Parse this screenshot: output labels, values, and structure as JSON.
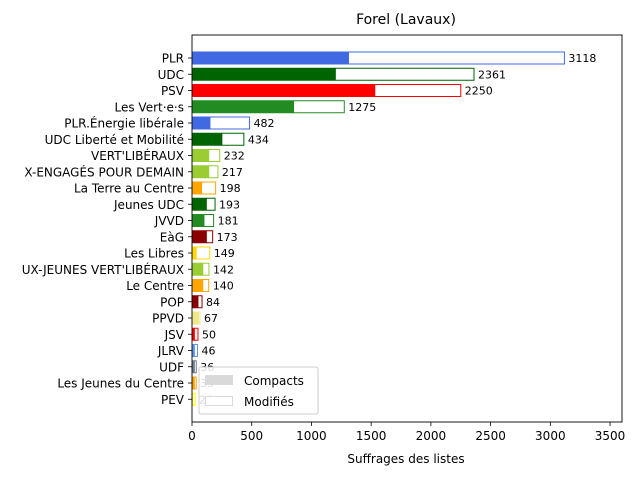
{
  "chart_data": {
    "type": "bar",
    "orientation": "horizontal",
    "stacked": true,
    "title": "Forel (Lavaux)",
    "xlabel": "Suffrages des listes",
    "ylabel": "",
    "xlim": [
      0,
      3600
    ],
    "xticks": [
      0,
      500,
      1000,
      1500,
      2000,
      2500,
      3000,
      3500
    ],
    "grid": false,
    "legend": {
      "placement": "lower-left",
      "entries": [
        {
          "label": "Compacts",
          "style": "filled",
          "color": "#d9d9d9"
        },
        {
          "label": "Modifiés",
          "style": "outline",
          "color": "#d9d9d9"
        }
      ]
    },
    "categories": [
      {
        "label": "PLR",
        "compact": 1310,
        "total": 3118,
        "color": "#4169e1"
      },
      {
        "label": "UDC",
        "compact": 1200,
        "total": 2361,
        "color": "#006400"
      },
      {
        "label": "PSV",
        "compact": 1530,
        "total": 2250,
        "color": "#ff0000"
      },
      {
        "label": "Les Vert·e·s",
        "compact": 850,
        "total": 1275,
        "color": "#228b22"
      },
      {
        "label": "PLR.Énergie libérale",
        "compact": 150,
        "total": 482,
        "color": "#4169e1"
      },
      {
        "label": "UDC Liberté et Mobilité",
        "compact": 250,
        "total": 434,
        "color": "#006400"
      },
      {
        "label": "VERT'LIBÉRAUX",
        "compact": 140,
        "total": 232,
        "color": "#9acd32"
      },
      {
        "label": "X-ENGAGÉS POUR DEMAIN",
        "compact": 140,
        "total": 217,
        "color": "#9acd32"
      },
      {
        "label": "La Terre au Centre",
        "compact": 80,
        "total": 198,
        "color": "#ffa500"
      },
      {
        "label": "Jeunes UDC",
        "compact": 120,
        "total": 193,
        "color": "#006400"
      },
      {
        "label": "JVVD",
        "compact": 100,
        "total": 181,
        "color": "#228b22"
      },
      {
        "label": "EàG",
        "compact": 120,
        "total": 173,
        "color": "#8b0000"
      },
      {
        "label": "Les Libres",
        "compact": 35,
        "total": 149,
        "color": "#ffd700"
      },
      {
        "label": "UX-JEUNES VERT'LIBÉRAUX",
        "compact": 90,
        "total": 142,
        "color": "#9acd32"
      },
      {
        "label": "Le Centre",
        "compact": 90,
        "total": 140,
        "color": "#ffa500"
      },
      {
        "label": "POP",
        "compact": 50,
        "total": 84,
        "color": "#8b0000"
      },
      {
        "label": "PPVD",
        "compact": 55,
        "total": 67,
        "color": "#f0e68c"
      },
      {
        "label": "JSV",
        "compact": 20,
        "total": 50,
        "color": "#ff0000"
      },
      {
        "label": "JLRV",
        "compact": 20,
        "total": 46,
        "color": "#6495ed"
      },
      {
        "label": "UDF",
        "compact": 20,
        "total": 36,
        "color": "#708090"
      },
      {
        "label": "Les Jeunes du Centre",
        "compact": 20,
        "total": 35,
        "color": "#ffa500"
      },
      {
        "label": "PEV",
        "compact": 5,
        "total": 26,
        "color": "#ffff00"
      }
    ]
  }
}
